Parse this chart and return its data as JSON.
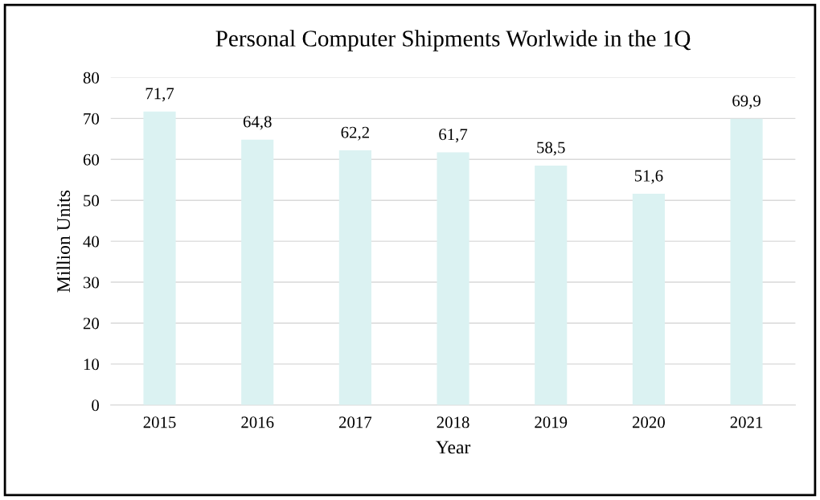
{
  "chart_data": {
    "type": "bar",
    "title": "Personal Computer Shipments Worlwide in the 1Q",
    "xlabel": "Year",
    "ylabel": "Million Units",
    "categories": [
      "2015",
      "2016",
      "2017",
      "2018",
      "2019",
      "2020",
      "2021"
    ],
    "values": [
      71.7,
      64.8,
      62.2,
      61.7,
      58.5,
      51.6,
      69.9
    ],
    "value_labels": [
      "71,7",
      "64,8",
      "62,2",
      "61,7",
      "58,5",
      "51,6",
      "69,9"
    ],
    "color": "#dbf2f2",
    "ylim": [
      0,
      80
    ],
    "yticks": [
      0,
      10,
      20,
      30,
      40,
      50,
      60,
      70,
      80
    ],
    "grid": "y",
    "legend": false
  }
}
